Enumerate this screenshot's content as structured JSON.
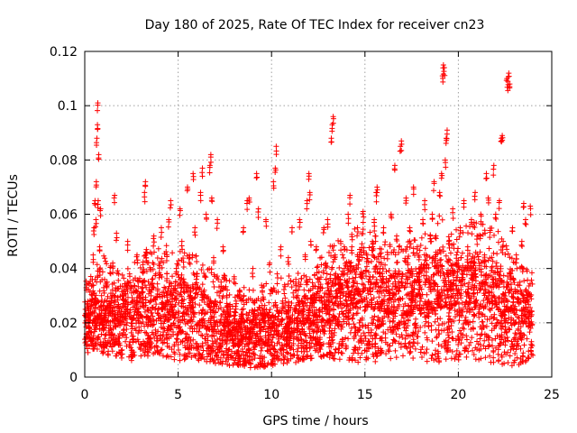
{
  "chart_data": {
    "type": "scatter",
    "title": "Day 180 of 2025, Rate Of TEC Index for receiver cn23",
    "xlabel": "GPS time / hours",
    "ylabel": "ROTI / TECUs",
    "xlim": [
      0,
      25
    ],
    "ylim": [
      0,
      0.12
    ],
    "x_ticks": [
      0,
      5,
      10,
      15,
      20,
      25
    ],
    "x_tick_labels": [
      "0",
      "5",
      "10",
      "15",
      "20",
      "25"
    ],
    "y_ticks": [
      0,
      0.02,
      0.04,
      0.06,
      0.08,
      0.1,
      0.12
    ],
    "y_tick_labels": [
      "0",
      "0.02",
      "0.04",
      "0.06",
      "0.08",
      "0.1",
      "0.12"
    ],
    "grid": true,
    "legend": "none",
    "marker": "plus",
    "color": "#ff0000",
    "series": [
      {
        "points": [
          [
            0.1,
            0.034
          ],
          [
            0.1,
            0.016
          ],
          [
            0.15,
            0.012
          ],
          [
            0.2,
            0.022
          ],
          [
            0.25,
            0.018
          ],
          [
            0.3,
            0.026
          ],
          [
            0.35,
            0.014
          ],
          [
            0.4,
            0.03
          ],
          [
            0.45,
            0.045
          ],
          [
            0.5,
            0.055
          ],
          [
            0.55,
            0.065
          ],
          [
            0.6,
            0.058
          ],
          [
            0.62,
            0.072
          ],
          [
            0.65,
            0.088
          ],
          [
            0.68,
            0.093
          ],
          [
            0.7,
            0.101
          ],
          [
            0.72,
            0.065
          ],
          [
            0.75,
            0.082
          ],
          [
            0.8,
            0.048
          ],
          [
            0.85,
            0.062
          ],
          [
            0.9,
            0.03
          ],
          [
            0.95,
            0.02
          ],
          [
            1.0,
            0.012
          ],
          [
            1.1,
            0.025
          ],
          [
            1.2,
            0.035
          ],
          [
            1.3,
            0.018
          ],
          [
            1.4,
            0.028
          ],
          [
            1.5,
            0.042
          ],
          [
            1.6,
            0.067
          ],
          [
            1.7,
            0.053
          ],
          [
            1.8,
            0.015
          ],
          [
            1.9,
            0.022
          ],
          [
            2.0,
            0.01
          ],
          [
            2.1,
            0.03
          ],
          [
            2.2,
            0.024
          ],
          [
            2.3,
            0.05
          ],
          [
            2.4,
            0.038
          ],
          [
            2.5,
            0.008
          ],
          [
            2.6,
            0.015
          ],
          [
            2.7,
            0.027
          ],
          [
            2.8,
            0.045
          ],
          [
            2.9,
            0.02
          ],
          [
            3.0,
            0.012
          ],
          [
            3.1,
            0.033
          ],
          [
            3.2,
            0.068
          ],
          [
            3.25,
            0.072
          ],
          [
            3.3,
            0.047
          ],
          [
            3.4,
            0.022
          ],
          [
            3.5,
            0.014
          ],
          [
            3.6,
            0.036
          ],
          [
            3.7,
            0.052
          ],
          [
            3.8,
            0.029
          ],
          [
            3.9,
            0.011
          ],
          [
            4.0,
            0.041
          ],
          [
            4.1,
            0.055
          ],
          [
            4.2,
            0.018
          ],
          [
            4.3,
            0.026
          ],
          [
            4.4,
            0.045
          ],
          [
            4.5,
            0.058
          ],
          [
            4.6,
            0.065
          ],
          [
            4.7,
            0.03
          ],
          [
            4.8,
            0.012
          ],
          [
            4.9,
            0.04
          ],
          [
            5.0,
            0.022
          ],
          [
            5.1,
            0.062
          ],
          [
            5.2,
            0.05
          ],
          [
            5.3,
            0.034
          ],
          [
            5.4,
            0.016
          ],
          [
            5.5,
            0.07
          ],
          [
            5.6,
            0.045
          ],
          [
            5.7,
            0.025
          ],
          [
            5.8,
            0.075
          ],
          [
            5.9,
            0.055
          ],
          [
            6.0,
            0.038
          ],
          [
            6.1,
            0.02
          ],
          [
            6.2,
            0.068
          ],
          [
            6.3,
            0.077
          ],
          [
            6.4,
            0.032
          ],
          [
            6.5,
            0.06
          ],
          [
            6.6,
            0.015
          ],
          [
            6.7,
            0.078
          ],
          [
            6.75,
            0.082
          ],
          [
            6.8,
            0.066
          ],
          [
            6.9,
            0.044
          ],
          [
            7.0,
            0.028
          ],
          [
            7.1,
            0.058
          ],
          [
            7.2,
            0.012
          ],
          [
            7.3,
            0.035
          ],
          [
            7.4,
            0.048
          ],
          [
            7.5,
            0.022
          ],
          [
            7.6,
            0.03
          ],
          [
            7.7,
            0.01
          ],
          [
            7.8,
            0.025
          ],
          [
            7.9,
            0.018
          ],
          [
            8.0,
            0.037
          ],
          [
            8.1,
            0.028
          ],
          [
            8.2,
            0.014
          ],
          [
            8.3,
            0.032
          ],
          [
            8.4,
            0.022
          ],
          [
            8.5,
            0.055
          ],
          [
            8.6,
            0.008
          ],
          [
            8.7,
            0.065
          ],
          [
            8.8,
            0.066
          ],
          [
            8.9,
            0.018
          ],
          [
            9.0,
            0.04
          ],
          [
            9.1,
            0.028
          ],
          [
            9.2,
            0.075
          ],
          [
            9.3,
            0.062
          ],
          [
            9.4,
            0.015
          ],
          [
            9.5,
            0.033
          ],
          [
            9.6,
            0.025
          ],
          [
            9.7,
            0.058
          ],
          [
            9.8,
            0.012
          ],
          [
            9.9,
            0.042
          ],
          [
            10.0,
            0.02
          ],
          [
            10.1,
            0.072
          ],
          [
            10.2,
            0.077
          ],
          [
            10.25,
            0.085
          ],
          [
            10.3,
            0.038
          ],
          [
            10.4,
            0.016
          ],
          [
            10.5,
            0.048
          ],
          [
            10.6,
            0.028
          ],
          [
            10.7,
            0.034
          ],
          [
            10.8,
            0.012
          ],
          [
            10.9,
            0.044
          ],
          [
            11.0,
            0.022
          ],
          [
            11.1,
            0.055
          ],
          [
            11.2,
            0.018
          ],
          [
            11.3,
            0.036
          ],
          [
            11.4,
            0.03
          ],
          [
            11.5,
            0.058
          ],
          [
            11.6,
            0.014
          ],
          [
            11.7,
            0.026
          ],
          [
            11.8,
            0.045
          ],
          [
            11.9,
            0.065
          ],
          [
            12.0,
            0.075
          ],
          [
            12.05,
            0.068
          ],
          [
            12.1,
            0.05
          ],
          [
            12.2,
            0.03
          ],
          [
            12.3,
            0.02
          ],
          [
            12.4,
            0.048
          ],
          [
            12.5,
            0.036
          ],
          [
            12.6,
            0.012
          ],
          [
            12.7,
            0.028
          ],
          [
            12.8,
            0.055
          ],
          [
            12.9,
            0.042
          ],
          [
            13.0,
            0.058
          ],
          [
            13.1,
            0.018
          ],
          [
            13.2,
            0.088
          ],
          [
            13.25,
            0.093
          ],
          [
            13.3,
            0.096
          ],
          [
            13.4,
            0.045
          ],
          [
            13.5,
            0.032
          ],
          [
            13.6,
            0.022
          ],
          [
            13.7,
            0.05
          ],
          [
            13.8,
            0.014
          ],
          [
            13.9,
            0.04
          ],
          [
            14.0,
            0.028
          ],
          [
            14.1,
            0.06
          ],
          [
            14.2,
            0.067
          ],
          [
            14.3,
            0.048
          ],
          [
            14.4,
            0.03
          ],
          [
            14.5,
            0.018
          ],
          [
            14.6,
            0.055
          ],
          [
            14.7,
            0.02
          ],
          [
            14.8,
            0.038
          ],
          [
            14.9,
            0.061
          ],
          [
            15.0,
            0.026
          ],
          [
            15.1,
            0.045
          ],
          [
            15.2,
            0.012
          ],
          [
            15.3,
            0.034
          ],
          [
            15.4,
            0.05
          ],
          [
            15.5,
            0.058
          ],
          [
            15.6,
            0.068
          ],
          [
            15.65,
            0.07
          ],
          [
            15.7,
            0.022
          ],
          [
            15.8,
            0.04
          ],
          [
            15.9,
            0.028
          ],
          [
            16.0,
            0.055
          ],
          [
            16.1,
            0.016
          ],
          [
            16.2,
            0.046
          ],
          [
            16.3,
            0.032
          ],
          [
            16.4,
            0.06
          ],
          [
            16.5,
            0.024
          ],
          [
            16.6,
            0.078
          ],
          [
            16.7,
            0.052
          ],
          [
            16.8,
            0.035
          ],
          [
            16.9,
            0.085
          ],
          [
            16.95,
            0.087
          ],
          [
            17.0,
            0.038
          ],
          [
            17.1,
            0.02
          ],
          [
            17.2,
            0.066
          ],
          [
            17.3,
            0.042
          ],
          [
            17.4,
            0.055
          ],
          [
            17.5,
            0.03
          ],
          [
            17.6,
            0.07
          ],
          [
            17.7,
            0.018
          ],
          [
            17.8,
            0.048
          ],
          [
            17.9,
            0.035
          ],
          [
            18.0,
            0.025
          ],
          [
            18.1,
            0.058
          ],
          [
            18.2,
            0.065
          ],
          [
            18.3,
            0.04
          ],
          [
            18.4,
            0.02
          ],
          [
            18.5,
            0.052
          ],
          [
            18.6,
            0.06
          ],
          [
            18.7,
            0.072
          ],
          [
            18.8,
            0.046
          ],
          [
            18.9,
            0.03
          ],
          [
            19.0,
            0.068
          ],
          [
            19.1,
            0.075
          ],
          [
            19.15,
            0.111
          ],
          [
            19.2,
            0.115
          ],
          [
            19.25,
            0.114
          ],
          [
            19.3,
            0.08
          ],
          [
            19.35,
            0.088
          ],
          [
            19.4,
            0.091
          ],
          [
            19.5,
            0.05
          ],
          [
            19.6,
            0.035
          ],
          [
            19.7,
            0.062
          ],
          [
            19.8,
            0.028
          ],
          [
            19.9,
            0.045
          ],
          [
            20.0,
            0.015
          ],
          [
            20.1,
            0.055
          ],
          [
            20.2,
            0.038
          ],
          [
            20.3,
            0.065
          ],
          [
            20.4,
            0.022
          ],
          [
            20.5,
            0.048
          ],
          [
            20.6,
            0.03
          ],
          [
            20.7,
            0.058
          ],
          [
            20.8,
            0.04
          ],
          [
            20.9,
            0.068
          ],
          [
            21.0,
            0.052
          ],
          [
            21.1,
            0.025
          ],
          [
            21.2,
            0.06
          ],
          [
            21.3,
            0.035
          ],
          [
            21.4,
            0.045
          ],
          [
            21.5,
            0.075
          ],
          [
            21.6,
            0.066
          ],
          [
            21.7,
            0.054
          ],
          [
            21.8,
            0.03
          ],
          [
            21.9,
            0.078
          ],
          [
            22.0,
            0.06
          ],
          [
            22.1,
            0.04
          ],
          [
            22.2,
            0.065
          ],
          [
            22.3,
            0.088
          ],
          [
            22.35,
            0.089
          ],
          [
            22.4,
            0.05
          ],
          [
            22.5,
            0.02
          ],
          [
            22.6,
            0.11
          ],
          [
            22.65,
            0.109
          ],
          [
            22.7,
            0.112
          ],
          [
            22.75,
            0.108
          ],
          [
            22.8,
            0.038
          ],
          [
            22.9,
            0.055
          ],
          [
            23.0,
            0.025
          ],
          [
            23.1,
            0.045
          ],
          [
            23.2,
            0.014
          ],
          [
            23.3,
            0.035
          ],
          [
            23.4,
            0.05
          ],
          [
            23.5,
            0.064
          ],
          [
            23.6,
            0.058
          ],
          [
            23.7,
            0.03
          ],
          [
            23.8,
            0.02
          ],
          [
            23.85,
            0.063
          ],
          [
            23.9,
            0.012
          ]
        ]
      }
    ],
    "band": {
      "note": "dense background scatter",
      "hours": [
        0,
        1,
        2,
        3,
        4,
        5,
        6,
        7,
        8,
        9,
        10,
        11,
        12,
        13,
        14,
        15,
        16,
        17,
        18,
        19,
        20,
        21,
        22,
        23,
        24
      ],
      "lower": [
        0.012,
        0.008,
        0.006,
        0.007,
        0.008,
        0.006,
        0.006,
        0.005,
        0.004,
        0.003,
        0.004,
        0.005,
        0.006,
        0.007,
        0.006,
        0.005,
        0.006,
        0.007,
        0.006,
        0.005,
        0.006,
        0.006,
        0.005,
        0.004,
        0.006
      ],
      "typical": [
        0.02,
        0.018,
        0.02,
        0.022,
        0.02,
        0.022,
        0.02,
        0.016,
        0.014,
        0.013,
        0.014,
        0.016,
        0.018,
        0.02,
        0.024,
        0.026,
        0.024,
        0.022,
        0.024,
        0.026,
        0.024,
        0.026,
        0.024,
        0.02,
        0.018
      ],
      "upper": [
        0.035,
        0.045,
        0.038,
        0.045,
        0.05,
        0.048,
        0.045,
        0.04,
        0.035,
        0.033,
        0.035,
        0.038,
        0.04,
        0.048,
        0.055,
        0.058,
        0.05,
        0.048,
        0.055,
        0.06,
        0.055,
        0.058,
        0.055,
        0.045,
        0.04
      ]
    }
  }
}
